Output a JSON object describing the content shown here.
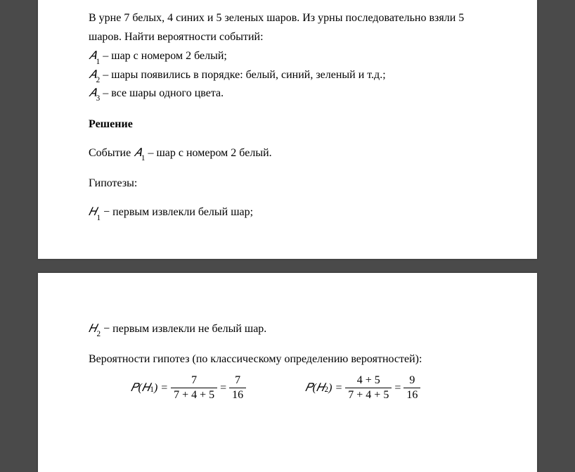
{
  "problem": {
    "intro_part1": "В урне 7 белых, 4 синих и 5 зеленых шаров. Из урны последовательно взяли 5",
    "intro_part2": "шаров. Найти вероятности событий:",
    "a1_sym": "𝐴",
    "a1_sub": "1",
    "a1_text": " – шар с номером 2 белый;",
    "a2_sym": "𝐴",
    "a2_sub": "2",
    "a2_text": " – шары появились в порядке: белый, синий, зеленый и т.д.;",
    "a3_sym": "𝐴",
    "a3_sub": "3",
    "a3_text": " – все шары одного цвета."
  },
  "solution_label": "Решение",
  "event_line": {
    "pre": "Событие ",
    "sym": "𝐴",
    "sub": "1",
    "post": " – шар с номером 2 белый."
  },
  "hypotheses_label": "Гипотезы:",
  "h1": {
    "sym": "𝐻",
    "sub": "1",
    "text": " − первым извлекли белый шар;"
  },
  "h2": {
    "sym": "𝐻",
    "sub": "2",
    "text": " − первым извлекли не белый шар."
  },
  "prob_intro": "Вероятности гипотез (по классическому определению вероятностей):",
  "p1": {
    "label": "𝑃(𝐻",
    "sub": "1",
    "close": ") =",
    "num1": "7",
    "den1": "7 + 4 + 5",
    "eq": "=",
    "num2": "7",
    "den2": "16"
  },
  "p2": {
    "label": "𝑃(𝐻",
    "sub": "2",
    "close": ") =",
    "num1": "4 + 5",
    "den1": "7 + 4 + 5",
    "eq": "=",
    "num2": "9",
    "den2": "16"
  }
}
